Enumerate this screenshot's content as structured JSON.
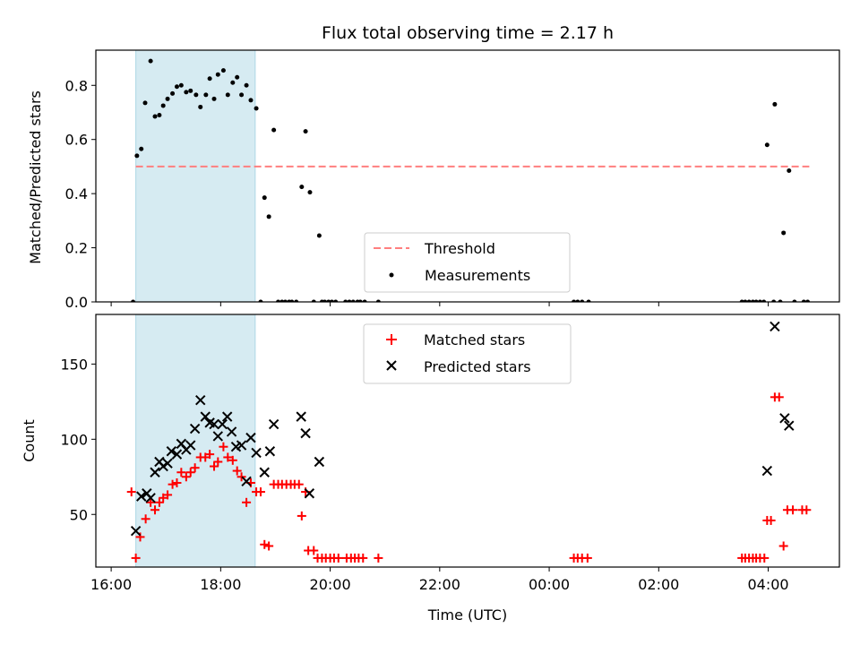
{
  "chart_data": [
    {
      "type": "scatter",
      "title": "Flux total observing time = 2.17 h",
      "ylabel": "Matched/Predicted stars",
      "xlabel": "",
      "xlim": [
        15.72,
        29.3
      ],
      "ylim": [
        0,
        0.93
      ],
      "yticks": [
        0.0,
        0.2,
        0.4,
        0.6,
        0.8
      ],
      "ytick_labels": [
        "0.0",
        "0.2",
        "0.4",
        "0.6",
        "0.8"
      ],
      "xticks": [
        16,
        18,
        20,
        22,
        24,
        26,
        28
      ],
      "xtick_labels": [],
      "grid": false,
      "legend_position": "lower center",
      "shaded_span": [
        16.45,
        18.63
      ],
      "shaded_color": "#add8e6",
      "threshold": {
        "name": "Threshold",
        "y": 0.5,
        "x": [
          16.45,
          28.75
        ],
        "color": "#ff7f7f"
      },
      "series": [
        {
          "name": "Measurements",
          "color": "#000000",
          "points": [
            [
              16.4,
              0.0
            ],
            [
              16.47,
              0.54
            ],
            [
              16.55,
              0.565
            ],
            [
              16.62,
              0.735
            ],
            [
              16.72,
              0.89
            ],
            [
              16.8,
              0.685
            ],
            [
              16.88,
              0.69
            ],
            [
              16.95,
              0.725
            ],
            [
              17.03,
              0.75
            ],
            [
              17.12,
              0.77
            ],
            [
              17.2,
              0.795
            ],
            [
              17.28,
              0.8
            ],
            [
              17.37,
              0.775
            ],
            [
              17.45,
              0.78
            ],
            [
              17.55,
              0.765
            ],
            [
              17.63,
              0.72
            ],
            [
              17.73,
              0.765
            ],
            [
              17.8,
              0.825
            ],
            [
              17.88,
              0.75
            ],
            [
              17.95,
              0.84
            ],
            [
              18.05,
              0.855
            ],
            [
              18.13,
              0.765
            ],
            [
              18.22,
              0.81
            ],
            [
              18.3,
              0.83
            ],
            [
              18.38,
              0.765
            ],
            [
              18.47,
              0.8
            ],
            [
              18.55,
              0.745
            ],
            [
              18.65,
              0.715
            ],
            [
              18.73,
              0.0
            ],
            [
              18.8,
              0.385
            ],
            [
              18.88,
              0.315
            ],
            [
              18.97,
              0.635
            ],
            [
              19.05,
              0.0
            ],
            [
              19.12,
              0.0
            ],
            [
              19.18,
              0.0
            ],
            [
              19.25,
              0.0
            ],
            [
              19.3,
              0.0
            ],
            [
              19.38,
              0.0
            ],
            [
              19.48,
              0.425
            ],
            [
              19.55,
              0.63
            ],
            [
              19.63,
              0.405
            ],
            [
              19.7,
              0.0
            ],
            [
              19.8,
              0.245
            ],
            [
              19.85,
              0.0
            ],
            [
              19.9,
              0.0
            ],
            [
              19.97,
              0.0
            ],
            [
              20.03,
              0.0
            ],
            [
              20.1,
              0.0
            ],
            [
              20.28,
              0.0
            ],
            [
              20.35,
              0.0
            ],
            [
              20.42,
              0.0
            ],
            [
              20.5,
              0.0
            ],
            [
              20.55,
              0.0
            ],
            [
              20.63,
              0.0
            ],
            [
              20.88,
              0.0
            ],
            [
              24.45,
              0.0
            ],
            [
              24.52,
              0.0
            ],
            [
              24.6,
              0.0
            ],
            [
              24.72,
              0.0
            ],
            [
              27.52,
              0.0
            ],
            [
              27.58,
              0.0
            ],
            [
              27.65,
              0.0
            ],
            [
              27.72,
              0.0
            ],
            [
              27.78,
              0.0
            ],
            [
              27.85,
              0.0
            ],
            [
              27.92,
              0.0
            ],
            [
              27.98,
              0.58
            ],
            [
              28.1,
              0.0
            ],
            [
              28.12,
              0.73
            ],
            [
              28.22,
              0.0
            ],
            [
              28.28,
              0.255
            ],
            [
              28.38,
              0.485
            ],
            [
              28.48,
              0.0
            ],
            [
              28.65,
              0.0
            ],
            [
              28.72,
              0.0
            ]
          ]
        }
      ]
    },
    {
      "type": "scatter",
      "title": "",
      "ylabel": "Count",
      "xlabel": "Time (UTC)",
      "xlim": [
        15.72,
        29.3
      ],
      "ylim": [
        15,
        183
      ],
      "yticks": [
        50,
        100,
        150
      ],
      "ytick_labels": [
        "50",
        "100",
        "150"
      ],
      "xticks": [
        16,
        18,
        20,
        22,
        24,
        26,
        28
      ],
      "xtick_labels": [
        "16:00",
        "18:00",
        "20:00",
        "22:00",
        "00:00",
        "02:00",
        "04:00"
      ],
      "grid": false,
      "legend_position": "upper center",
      "shaded_span": [
        16.45,
        18.63
      ],
      "shaded_color": "#add8e6",
      "series": [
        {
          "name": "Matched stars",
          "marker": "+",
          "color": "#ff0000",
          "points": [
            [
              16.37,
              65
            ],
            [
              16.45,
              21
            ],
            [
              16.53,
              35
            ],
            [
              16.63,
              47
            ],
            [
              16.72,
              58
            ],
            [
              16.8,
              53
            ],
            [
              16.88,
              58
            ],
            [
              16.95,
              61
            ],
            [
              17.03,
              63
            ],
            [
              17.12,
              70
            ],
            [
              17.2,
              71
            ],
            [
              17.28,
              78
            ],
            [
              17.37,
              75
            ],
            [
              17.45,
              78
            ],
            [
              17.53,
              81
            ],
            [
              17.63,
              88
            ],
            [
              17.72,
              88
            ],
            [
              17.8,
              90
            ],
            [
              17.88,
              82
            ],
            [
              17.95,
              85
            ],
            [
              18.05,
              95
            ],
            [
              18.13,
              88
            ],
            [
              18.22,
              86
            ],
            [
              18.3,
              79
            ],
            [
              18.38,
              75
            ],
            [
              18.47,
              58
            ],
            [
              18.55,
              71
            ],
            [
              18.65,
              65
            ],
            [
              18.73,
              65
            ],
            [
              18.8,
              30
            ],
            [
              18.88,
              29
            ],
            [
              18.97,
              70
            ],
            [
              19.05,
              70
            ],
            [
              19.12,
              70
            ],
            [
              19.2,
              70
            ],
            [
              19.28,
              70
            ],
            [
              19.35,
              70
            ],
            [
              19.43,
              70
            ],
            [
              19.48,
              49
            ],
            [
              19.55,
              65
            ],
            [
              19.6,
              26
            ],
            [
              19.7,
              26
            ],
            [
              19.77,
              21
            ],
            [
              19.85,
              21
            ],
            [
              19.92,
              21
            ],
            [
              20.0,
              21
            ],
            [
              20.07,
              21
            ],
            [
              20.15,
              21
            ],
            [
              20.3,
              21
            ],
            [
              20.38,
              21
            ],
            [
              20.45,
              21
            ],
            [
              20.52,
              21
            ],
            [
              20.6,
              21
            ],
            [
              20.88,
              21
            ],
            [
              24.45,
              21
            ],
            [
              24.52,
              21
            ],
            [
              24.6,
              21
            ],
            [
              24.7,
              21
            ],
            [
              27.52,
              21
            ],
            [
              27.58,
              21
            ],
            [
              27.65,
              21
            ],
            [
              27.72,
              21
            ],
            [
              27.78,
              21
            ],
            [
              27.85,
              21
            ],
            [
              27.93,
              21
            ],
            [
              27.98,
              46
            ],
            [
              28.05,
              46
            ],
            [
              28.12,
              128
            ],
            [
              28.2,
              128
            ],
            [
              28.28,
              29
            ],
            [
              28.35,
              53
            ],
            [
              28.45,
              53
            ],
            [
              28.62,
              53
            ],
            [
              28.7,
              53
            ]
          ]
        },
        {
          "name": "Predicted stars",
          "marker": "x",
          "color": "#000000",
          "points": [
            [
              16.45,
              39
            ],
            [
              16.55,
              62
            ],
            [
              16.65,
              64
            ],
            [
              16.72,
              61
            ],
            [
              16.8,
              78
            ],
            [
              16.88,
              85
            ],
            [
              16.95,
              82
            ],
            [
              17.03,
              84
            ],
            [
              17.1,
              92
            ],
            [
              17.2,
              90
            ],
            [
              17.28,
              97
            ],
            [
              17.37,
              93
            ],
            [
              17.45,
              96
            ],
            [
              17.53,
              107
            ],
            [
              17.63,
              126
            ],
            [
              17.72,
              115
            ],
            [
              17.8,
              111
            ],
            [
              17.88,
              110
            ],
            [
              17.95,
              102
            ],
            [
              18.03,
              110
            ],
            [
              18.12,
              115
            ],
            [
              18.2,
              105
            ],
            [
              18.28,
              95
            ],
            [
              18.38,
              96
            ],
            [
              18.47,
              72
            ],
            [
              18.55,
              101
            ],
            [
              18.65,
              91
            ],
            [
              18.8,
              78
            ],
            [
              18.9,
              92
            ],
            [
              18.97,
              110
            ],
            [
              19.47,
              115
            ],
            [
              19.55,
              104
            ],
            [
              19.62,
              64
            ],
            [
              19.8,
              85
            ],
            [
              27.98,
              79
            ],
            [
              28.12,
              175
            ],
            [
              28.3,
              114
            ],
            [
              28.38,
              109
            ]
          ]
        }
      ]
    }
  ]
}
